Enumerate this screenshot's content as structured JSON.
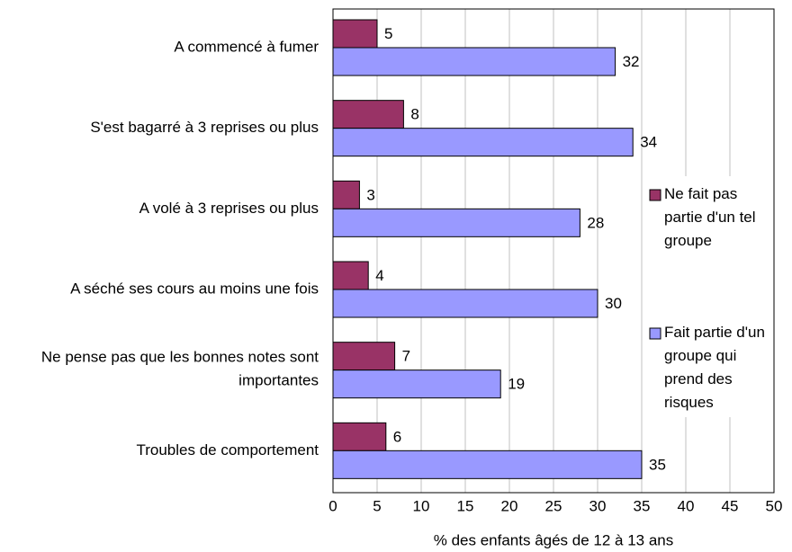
{
  "chart_data": {
    "type": "barh",
    "categories": [
      "A commencé à fumer",
      "S'est bagarré à 3 reprises ou plus",
      "A volé à 3 reprises ou plus",
      "A séché ses cours au moins une fois",
      "Ne pense pas que les bonnes notes sont importantes",
      "Troubles de comportement"
    ],
    "series": [
      {
        "name": "Ne fait pas partie d'un tel groupe",
        "color": "#993366",
        "values": [
          5,
          8,
          3,
          4,
          7,
          6
        ]
      },
      {
        "name": "Fait partie d'un groupe qui prend des risques",
        "color": "#9999ff",
        "values": [
          32,
          34,
          28,
          30,
          19,
          35
        ]
      }
    ],
    "xlabel": "% des enfants âgés de 12 à 13 ans",
    "xlim": [
      0,
      50
    ],
    "xticks": [
      0,
      5,
      10,
      15,
      20,
      25,
      30,
      35,
      40,
      45,
      50
    ],
    "grid": true,
    "legend": "right"
  }
}
